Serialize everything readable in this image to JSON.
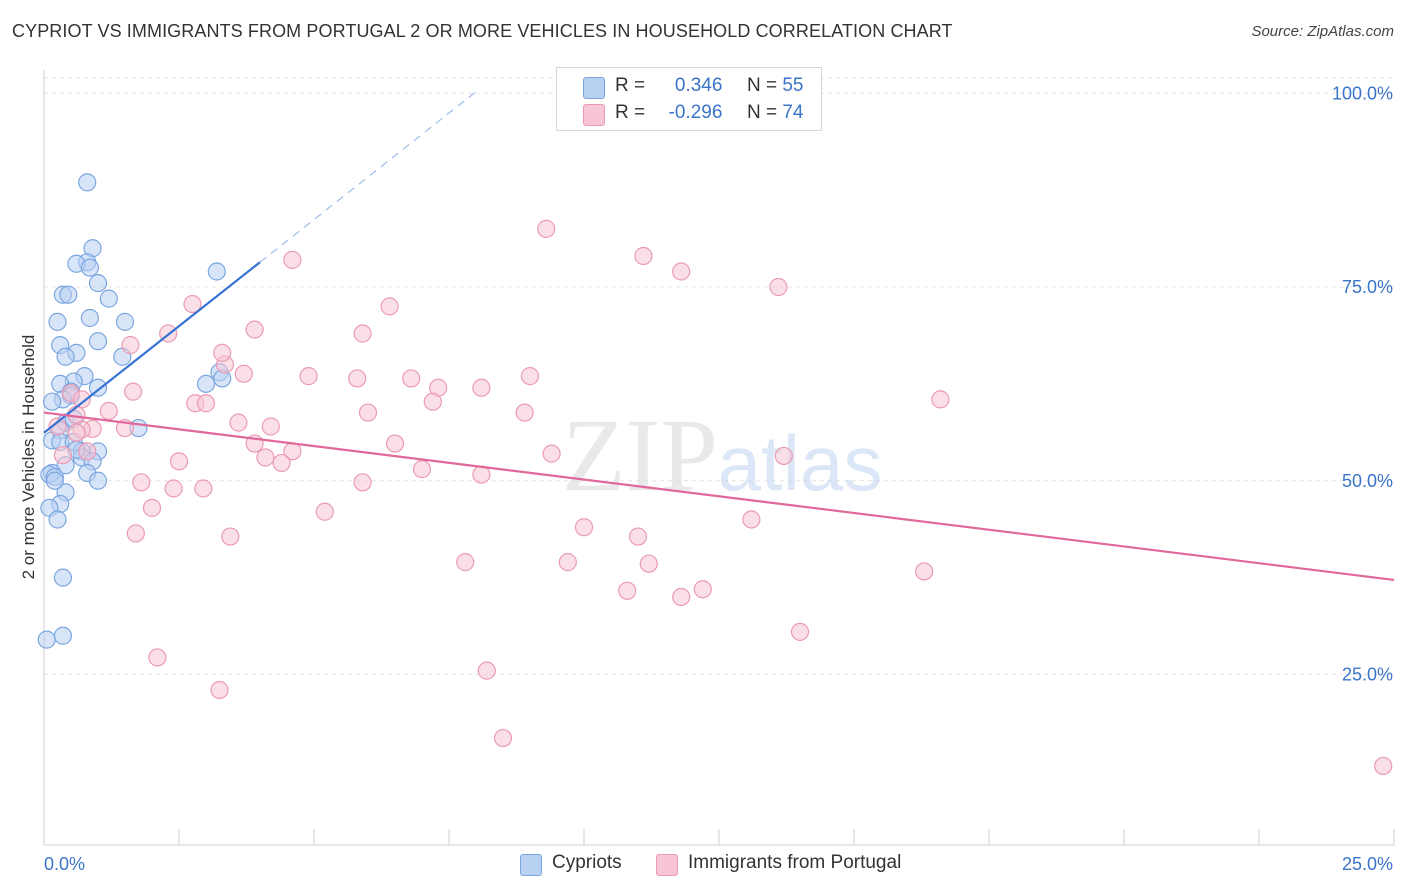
{
  "title": "CYPRIOT VS IMMIGRANTS FROM PORTUGAL 2 OR MORE VEHICLES IN HOUSEHOLD CORRELATION CHART",
  "source": "Source: ZipAtlas.com",
  "watermark": {
    "zip": "ZIP",
    "atlas": "atlas"
  },
  "legend_top": {
    "rows": [
      {
        "r_label": "R =",
        "r_value": "0.346",
        "n_label": "N =",
        "n_value": "55"
      },
      {
        "r_label": "R =",
        "r_value": "-0.296",
        "n_label": "N =",
        "n_value": "74"
      }
    ]
  },
  "colors": {
    "blue_fill": "#b8d0f2",
    "blue_stroke": "#7aa6e0",
    "blue_line": "#3673d4",
    "pink_fill": "#f7c5d4",
    "pink_stroke": "#eb9ab4",
    "pink_line": "#e0689a",
    "axis_label": "#3a74c9",
    "grid": "#e4e4e4"
  },
  "chart_data": {
    "type": "scatter",
    "title": "CYPRIOT VS IMMIGRANTS FROM PORTUGAL 2 OR MORE VEHICLES IN HOUSEHOLD CORRELATION CHART",
    "xlabel": "",
    "ylabel": "2 or more Vehicles in Household",
    "xlim": [
      0,
      25
    ],
    "ylim": [
      3,
      103
    ],
    "x_tick_labels": [
      "0.0%",
      "25.0%"
    ],
    "y_ticks": [
      25,
      50,
      75,
      100
    ],
    "y_tick_labels": [
      "25.0%",
      "50.0%",
      "75.0%",
      "100.0%"
    ],
    "legend_position": "bottom",
    "series": [
      {
        "name": "Cypriots",
        "r": 0.346,
        "n": 55,
        "trend": {
          "x": [
            0.0,
            4.0
          ],
          "y": [
            56.2,
            78.2
          ]
        },
        "trend_extension": {
          "x": [
            4.0,
            8.0
          ],
          "y": [
            78.2,
            100.2
          ]
        },
        "points": [
          [
            0.8,
            88.5
          ],
          [
            0.9,
            80.0
          ],
          [
            0.8,
            78.2
          ],
          [
            0.6,
            78.0
          ],
          [
            0.85,
            77.5
          ],
          [
            3.2,
            77.0
          ],
          [
            1.0,
            75.5
          ],
          [
            0.35,
            74.0
          ],
          [
            0.45,
            74.0
          ],
          [
            1.2,
            73.5
          ],
          [
            0.85,
            71.0
          ],
          [
            1.5,
            70.5
          ],
          [
            0.25,
            70.5
          ],
          [
            1.0,
            68.0
          ],
          [
            0.3,
            67.5
          ],
          [
            0.6,
            66.5
          ],
          [
            0.4,
            66.0
          ],
          [
            1.45,
            66.0
          ],
          [
            3.25,
            64.0
          ],
          [
            0.75,
            63.5
          ],
          [
            3.3,
            63.2
          ],
          [
            0.55,
            62.8
          ],
          [
            0.3,
            62.5
          ],
          [
            3.0,
            62.5
          ],
          [
            1.0,
            62.0
          ],
          [
            0.5,
            61.5
          ],
          [
            0.5,
            61.0
          ],
          [
            0.35,
            60.5
          ],
          [
            0.15,
            60.2
          ],
          [
            0.4,
            57.5
          ],
          [
            0.3,
            56.5
          ],
          [
            1.75,
            56.8
          ],
          [
            0.15,
            55.2
          ],
          [
            0.3,
            55.0
          ],
          [
            0.55,
            55.0
          ],
          [
            0.7,
            53.8
          ],
          [
            1.0,
            53.8
          ],
          [
            0.7,
            53.0
          ],
          [
            0.4,
            52.0
          ],
          [
            0.9,
            52.5
          ],
          [
            0.8,
            51.0
          ],
          [
            0.15,
            51.0
          ],
          [
            0.1,
            50.8
          ],
          [
            0.2,
            50.5
          ],
          [
            1.0,
            50.0
          ],
          [
            0.4,
            48.5
          ],
          [
            0.3,
            47.0
          ],
          [
            0.1,
            46.5
          ],
          [
            0.25,
            45.0
          ],
          [
            0.35,
            37.5
          ],
          [
            0.35,
            30.0
          ],
          [
            0.05,
            29.5
          ],
          [
            0.6,
            54.0
          ],
          [
            0.2,
            50.0
          ],
          [
            0.55,
            58.0
          ]
        ]
      },
      {
        "name": "Immigrants from Portugal",
        "r": -0.296,
        "n": 74,
        "trend": {
          "x": [
            0.0,
            25.0
          ],
          "y": [
            58.8,
            37.2
          ]
        },
        "points": [
          [
            9.3,
            82.5
          ],
          [
            11.1,
            79.0
          ],
          [
            11.8,
            77.0
          ],
          [
            4.6,
            78.5
          ],
          [
            13.6,
            75.0
          ],
          [
            2.75,
            72.8
          ],
          [
            6.4,
            72.5
          ],
          [
            3.9,
            69.5
          ],
          [
            2.3,
            69.0
          ],
          [
            5.9,
            69.0
          ],
          [
            1.6,
            67.5
          ],
          [
            3.35,
            65.0
          ],
          [
            3.7,
            63.8
          ],
          [
            4.9,
            63.5
          ],
          [
            5.8,
            63.2
          ],
          [
            9.0,
            63.5
          ],
          [
            6.8,
            63.2
          ],
          [
            8.1,
            62.0
          ],
          [
            7.3,
            62.0
          ],
          [
            1.65,
            61.5
          ],
          [
            0.5,
            61.3
          ],
          [
            16.6,
            60.5
          ],
          [
            0.7,
            60.5
          ],
          [
            2.8,
            60.0
          ],
          [
            3.0,
            60.0
          ],
          [
            7.2,
            60.2
          ],
          [
            6.0,
            58.8
          ],
          [
            8.9,
            58.8
          ],
          [
            1.2,
            59.0
          ],
          [
            3.6,
            57.5
          ],
          [
            4.2,
            57.0
          ],
          [
            1.5,
            56.8
          ],
          [
            0.9,
            56.7
          ],
          [
            0.7,
            56.6
          ],
          [
            0.6,
            56.2
          ],
          [
            6.5,
            54.8
          ],
          [
            3.9,
            54.8
          ],
          [
            4.6,
            53.8
          ],
          [
            9.4,
            53.5
          ],
          [
            0.35,
            53.3
          ],
          [
            13.7,
            53.2
          ],
          [
            4.1,
            53.0
          ],
          [
            0.8,
            53.8
          ],
          [
            2.5,
            52.5
          ],
          [
            4.4,
            52.3
          ],
          [
            7.0,
            51.5
          ],
          [
            8.1,
            50.8
          ],
          [
            1.8,
            49.8
          ],
          [
            5.9,
            49.8
          ],
          [
            2.95,
            49.0
          ],
          [
            2.4,
            49.0
          ],
          [
            2.0,
            46.5
          ],
          [
            5.2,
            46.0
          ],
          [
            13.1,
            45.0
          ],
          [
            10.0,
            44.0
          ],
          [
            1.7,
            43.2
          ],
          [
            3.45,
            42.8
          ],
          [
            11.0,
            42.8
          ],
          [
            7.8,
            39.5
          ],
          [
            9.7,
            39.5
          ],
          [
            11.2,
            39.3
          ],
          [
            16.3,
            38.3
          ],
          [
            12.2,
            36.0
          ],
          [
            10.8,
            35.8
          ],
          [
            11.8,
            35.0
          ],
          [
            14.0,
            30.5
          ],
          [
            2.1,
            27.2
          ],
          [
            8.2,
            25.5
          ],
          [
            3.25,
            23.0
          ],
          [
            8.5,
            16.8
          ],
          [
            24.8,
            13.2
          ],
          [
            0.25,
            57.0
          ],
          [
            3.3,
            66.5
          ],
          [
            0.6,
            58.5
          ]
        ]
      }
    ]
  },
  "legend_bottom": {
    "items": [
      "Cypriots",
      "Immigrants from Portugal"
    ]
  }
}
